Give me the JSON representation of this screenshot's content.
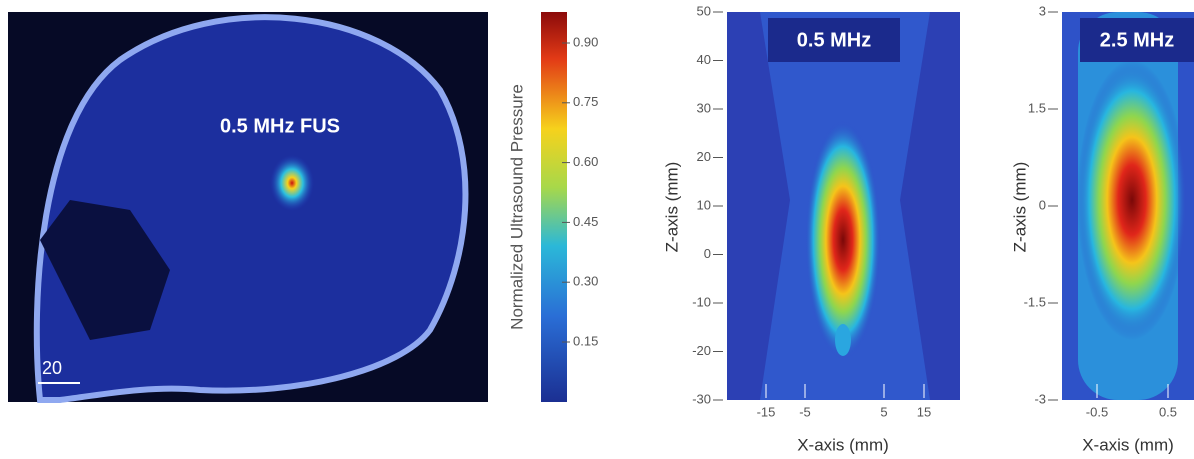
{
  "skull_panel": {
    "label": "0.5 MHz FUS",
    "scale_bar": "20"
  },
  "colorbar": {
    "title": "Normalized Ultrasound Pressure",
    "ticks": [
      "0.90",
      "0.75",
      "0.60",
      "0.45",
      "0.30",
      "0.15"
    ]
  },
  "plot_low": {
    "title": "0.5 MHz",
    "ylabel": "Z-axis (mm)",
    "xlabel": "X-axis (mm)",
    "yticks": [
      "50",
      "40",
      "30",
      "20",
      "10",
      "0",
      "-10",
      "-20",
      "-30"
    ],
    "xticks": [
      "-15",
      "-5",
      "5",
      "15"
    ]
  },
  "plot_high": {
    "title": "2.5 MHz",
    "ylabel": "Z-axis (mm)",
    "xlabel": "X-axis (mm)",
    "yticks": [
      "3",
      "1.5",
      "0",
      "-1.5",
      "-3"
    ],
    "xticks": [
      "-0.5",
      "0.5"
    ]
  }
}
